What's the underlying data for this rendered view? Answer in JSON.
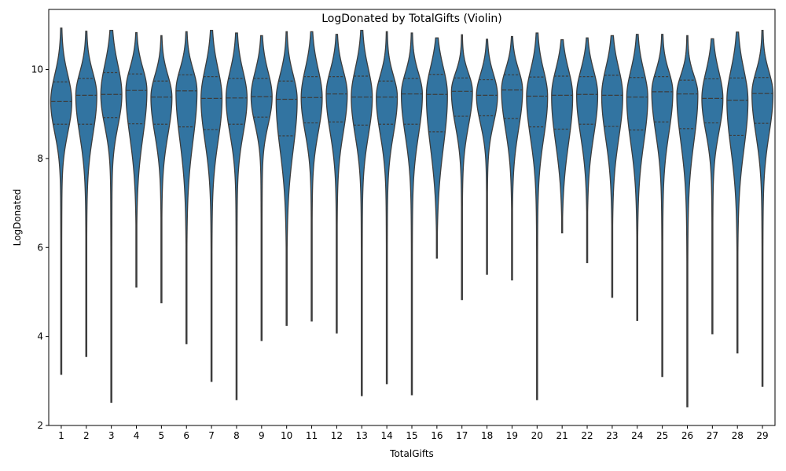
{
  "chart_data": {
    "type": "violin",
    "title": "LogDonated by TotalGifts (Violin)",
    "xlabel": "TotalGifts",
    "ylabel": "LogDonated",
    "ylim": [
      2.0,
      11.35
    ],
    "yticks": [
      2,
      4,
      6,
      8,
      10
    ],
    "inner": "quartile",
    "color": "#3274a1",
    "edge_color": "#3d3d3d",
    "categories": [
      "1",
      "2",
      "3",
      "4",
      "5",
      "6",
      "7",
      "8",
      "9",
      "10",
      "11",
      "12",
      "13",
      "14",
      "15",
      "16",
      "17",
      "18",
      "19",
      "20",
      "21",
      "22",
      "23",
      "24",
      "25",
      "26",
      "27",
      "28",
      "29"
    ],
    "violins": [
      {
        "category": "1",
        "min": 3.15,
        "q1": 8.77,
        "median": 9.28,
        "q3": 9.72,
        "max": 10.93
      },
      {
        "category": "2",
        "min": 3.55,
        "q1": 8.77,
        "median": 9.42,
        "q3": 9.8,
        "max": 10.86
      },
      {
        "category": "3",
        "min": 2.52,
        "q1": 8.92,
        "median": 9.44,
        "q3": 9.93,
        "max": 10.88
      },
      {
        "category": "4",
        "min": 5.11,
        "q1": 8.78,
        "median": 9.53,
        "q3": 9.9,
        "max": 10.83
      },
      {
        "category": "5",
        "min": 4.76,
        "q1": 8.77,
        "median": 9.38,
        "q3": 9.74,
        "max": 10.76
      },
      {
        "category": "6",
        "min": 3.84,
        "q1": 8.71,
        "median": 9.52,
        "q3": 9.88,
        "max": 10.85
      },
      {
        "category": "7",
        "min": 2.99,
        "q1": 8.65,
        "median": 9.35,
        "q3": 9.84,
        "max": 10.88
      },
      {
        "category": "8",
        "min": 2.58,
        "q1": 8.77,
        "median": 9.36,
        "q3": 9.8,
        "max": 10.82
      },
      {
        "category": "9",
        "min": 3.91,
        "q1": 8.93,
        "median": 9.39,
        "q3": 9.8,
        "max": 10.76
      },
      {
        "category": "10",
        "min": 4.25,
        "q1": 8.51,
        "median": 9.33,
        "q3": 9.74,
        "max": 10.85
      },
      {
        "category": "11",
        "min": 4.35,
        "q1": 8.8,
        "median": 9.37,
        "q3": 9.84,
        "max": 10.85
      },
      {
        "category": "12",
        "min": 4.08,
        "q1": 8.82,
        "median": 9.45,
        "q3": 9.84,
        "max": 10.79
      },
      {
        "category": "13",
        "min": 2.67,
        "q1": 8.75,
        "median": 9.38,
        "q3": 9.85,
        "max": 10.88
      },
      {
        "category": "14",
        "min": 2.94,
        "q1": 8.77,
        "median": 9.38,
        "q3": 9.74,
        "max": 10.85
      },
      {
        "category": "15",
        "min": 2.69,
        "q1": 8.77,
        "median": 9.45,
        "q3": 9.8,
        "max": 10.82
      },
      {
        "category": "16",
        "min": 5.76,
        "q1": 8.6,
        "median": 9.44,
        "q3": 9.89,
        "max": 10.71
      },
      {
        "category": "17",
        "min": 4.83,
        "q1": 8.95,
        "median": 9.51,
        "q3": 9.81,
        "max": 10.78
      },
      {
        "category": "18",
        "min": 5.4,
        "q1": 8.96,
        "median": 9.42,
        "q3": 9.77,
        "max": 10.68
      },
      {
        "category": "19",
        "min": 5.27,
        "q1": 8.9,
        "median": 9.54,
        "q3": 9.88,
        "max": 10.74
      },
      {
        "category": "20",
        "min": 2.58,
        "q1": 8.71,
        "median": 9.4,
        "q3": 9.83,
        "max": 10.82
      },
      {
        "category": "21",
        "min": 6.33,
        "q1": 8.66,
        "median": 9.42,
        "q3": 9.85,
        "max": 10.67
      },
      {
        "category": "22",
        "min": 5.66,
        "q1": 8.77,
        "median": 9.44,
        "q3": 9.84,
        "max": 10.71
      },
      {
        "category": "23",
        "min": 4.88,
        "q1": 8.72,
        "median": 9.42,
        "q3": 9.87,
        "max": 10.76
      },
      {
        "category": "24",
        "min": 4.36,
        "q1": 8.64,
        "median": 9.38,
        "q3": 9.82,
        "max": 10.79
      },
      {
        "category": "25",
        "min": 3.1,
        "q1": 8.82,
        "median": 9.5,
        "q3": 9.84,
        "max": 10.79
      },
      {
        "category": "26",
        "min": 2.42,
        "q1": 8.67,
        "median": 9.45,
        "q3": 9.76,
        "max": 10.76
      },
      {
        "category": "27",
        "min": 4.06,
        "q1": 8.8,
        "median": 9.35,
        "q3": 9.79,
        "max": 10.69
      },
      {
        "category": "28",
        "min": 3.63,
        "q1": 8.52,
        "median": 9.31,
        "q3": 9.81,
        "max": 10.84
      },
      {
        "category": "29",
        "min": 2.88,
        "q1": 8.79,
        "median": 9.46,
        "q3": 9.82,
        "max": 10.88
      }
    ]
  }
}
